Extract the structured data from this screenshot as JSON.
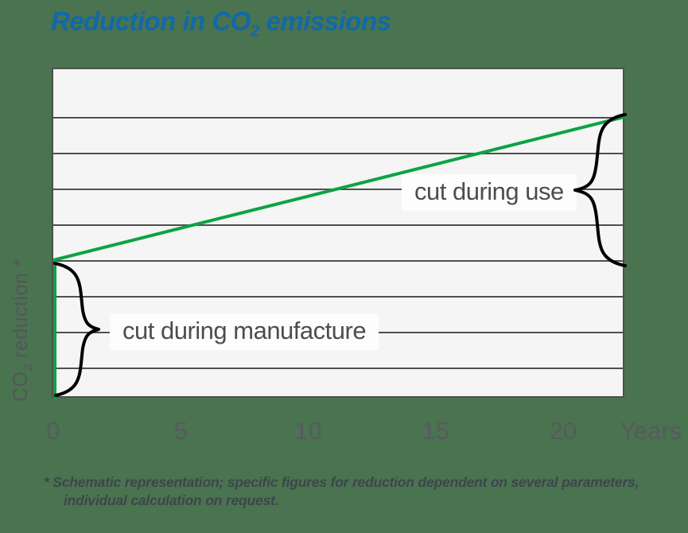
{
  "page": {
    "background_color": "#4a7350"
  },
  "title": {
    "prefix": "Reduction in CO",
    "sub": "2",
    "suffix": " emissions",
    "color": "#1069a8"
  },
  "chart_data": {
    "type": "line",
    "title": "Reduction in CO2 emissions",
    "xlabel": "Years",
    "ylabel": "CO2 reduction *",
    "x_ticks": [
      0,
      5,
      10,
      15,
      20
    ],
    "x_range": [
      0,
      22.4
    ],
    "y_range_gridline_units": [
      0,
      9.2
    ],
    "n_gridlines": 8,
    "grid": true,
    "legend": "none",
    "plot_bg": "#f4f5f4",
    "grid_color": "#4f4f4f",
    "series": [
      {
        "name": "CO2 reduction (schematic)",
        "color": "#0ca344",
        "points": [
          [
            0,
            0
          ],
          [
            0,
            3.9
          ],
          [
            22.4,
            7.9
          ]
        ],
        "note": "vertical segment at x=0 is the cut during manufacture; straight diagonal rise to the right edge is the cut during use"
      }
    ],
    "annotations": [
      {
        "label": "cut during manufacture",
        "target": "vertical green segment at x=0 from 0 to 3.9 units",
        "brace_side": "left, pointing right"
      },
      {
        "label": "cut during use",
        "target": "diagonal rise from 3.9 to 7.9 units",
        "brace_side": "right, pointing left"
      }
    ]
  },
  "ylabel": {
    "prefix": "CO",
    "sub": "2",
    "suffix": " reduction *"
  },
  "footnote": {
    "line1": "* Schematic representation; specific figures for reduction dependent on several parameters,",
    "line2": "individual calculation on request."
  },
  "colors": {
    "background": "#4a7350",
    "title_blue": "#1069a8",
    "line_green": "#0ca344",
    "axis_text": "#585a5e",
    "label_text": "#4d4d4d",
    "footnote_text": "#3d464b",
    "brace_black": "#000000"
  }
}
